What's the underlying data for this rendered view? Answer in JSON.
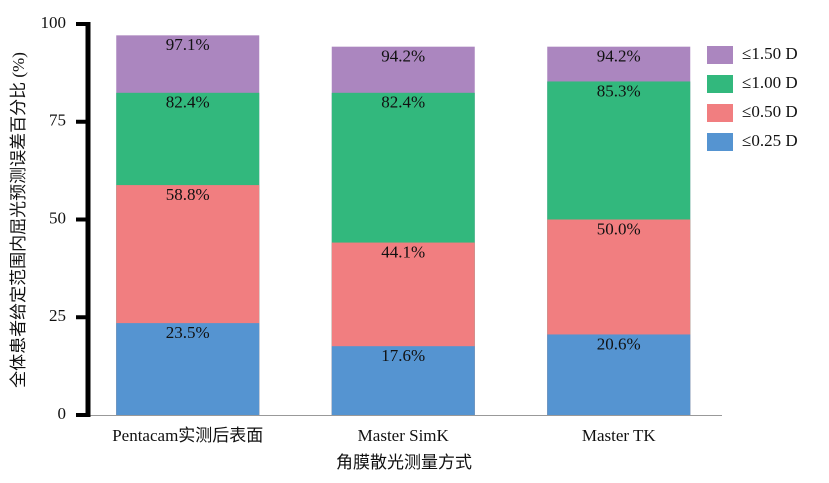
{
  "chart_data": {
    "type": "bar",
    "layout": "overlapping",
    "y_label": "全体患者给定范围内屈光预测误差百分比 (%)",
    "x_label": "角膜散光测量方式",
    "categories": [
      "Pentacam实测后表面",
      "Master SimK",
      "Master TK"
    ],
    "series": [
      {
        "name": "≤1.50 D",
        "color": "#ab86bf",
        "values": [
          97.1,
          94.2,
          94.2
        ],
        "value_labels": [
          "97.1%",
          "94.2%",
          "94.2%"
        ]
      },
      {
        "name": "≤1.00 D",
        "color": "#32b87d",
        "values": [
          82.4,
          82.4,
          85.3
        ],
        "value_labels": [
          "82.4%",
          "82.4%",
          "85.3%"
        ]
      },
      {
        "name": "≤0.50 D",
        "color": "#f17e80",
        "values": [
          58.8,
          44.1,
          50.0
        ],
        "value_labels": [
          "58.8%",
          "44.1%",
          "50.0%"
        ]
      },
      {
        "name": "≤0.25 D",
        "color": "#5594d1",
        "values": [
          23.5,
          17.6,
          20.6
        ],
        "value_labels": [
          "23.5%",
          "17.6%",
          "20.6%"
        ]
      }
    ],
    "ylim": [
      0,
      100
    ],
    "yticks": [
      0,
      25,
      50,
      75,
      100
    ],
    "legend": "upper right"
  }
}
